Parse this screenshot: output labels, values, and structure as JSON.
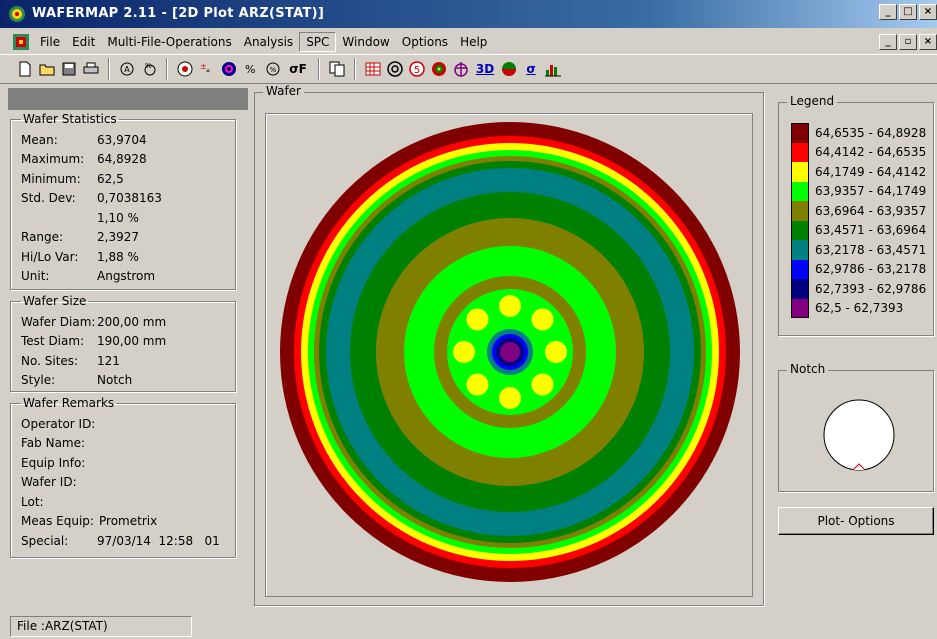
{
  "window": {
    "title": "WAFERMAP 2.11 - [2D Plot  ARZ(STAT)]",
    "controls": [
      "_",
      "□",
      "×"
    ],
    "mdi_controls": [
      "_",
      "▫",
      "×"
    ]
  },
  "menu": [
    "File",
    "Edit",
    "Multi-File-Operations",
    "Analysis",
    "SPC",
    "Window",
    "Options",
    "Help"
  ],
  "toolbar": {
    "sigma_f": "σF",
    "three_d": "3D",
    "sigma": "σ"
  },
  "stats": {
    "title": "Wafer Statistics",
    "rows": [
      {
        "k": "Mean:",
        "v": "63,9704"
      },
      {
        "k": "Maximum:",
        "v": "64,8928"
      },
      {
        "k": "Minimum:",
        "v": "62,5"
      },
      {
        "k": "Std. Dev:",
        "v": "0,7038163"
      },
      {
        "k": "",
        "v": "1,10 %"
      },
      {
        "k": "Range:",
        "v": "2,3927"
      },
      {
        "k": "Hi/Lo Var:",
        "v": "1,88 %"
      },
      {
        "k": "Unit:",
        "v": "Angstrom"
      }
    ]
  },
  "size": {
    "title": "Wafer Size",
    "rows": [
      {
        "k": "Wafer Diam:",
        "v": "200,00 mm"
      },
      {
        "k": "Test Diam:",
        "v": "190,00 mm"
      },
      {
        "k": "No. Sites:",
        "v": "121"
      },
      {
        "k": "Style:",
        "v": "Notch"
      }
    ]
  },
  "remarks": {
    "title": "Wafer Remarks",
    "rows": [
      {
        "k": "Operator ID:",
        "v": ""
      },
      {
        "k": "Fab Name:",
        "v": ""
      },
      {
        "k": "Equip Info:",
        "v": ""
      },
      {
        "k": "Wafer ID:",
        "v": ""
      },
      {
        "k": "Lot:",
        "v": ""
      },
      {
        "k": "Meas Equip:",
        "v": "Prometrix"
      },
      {
        "k": "Special:",
        "v": "97/03/14  12:58   01"
      }
    ]
  },
  "wafer_panel": {
    "label": "Wafer"
  },
  "legend": {
    "title": "Legend",
    "items": [
      {
        "label": "64,6535 - 64,8928",
        "color": "#800000"
      },
      {
        "label": "64,4142 - 64,6535",
        "color": "#ff0000"
      },
      {
        "label": "64,1749 - 64,4142",
        "color": "#ffff00"
      },
      {
        "label": "63,9357 - 64,1749",
        "color": "#00ff00"
      },
      {
        "label": "63,6964 - 63,9357",
        "color": "#808000"
      },
      {
        "label": "63,4571 - 63,6964",
        "color": "#008000"
      },
      {
        "label": "63,2178 - 63,4571",
        "color": "#008080"
      },
      {
        "label": "62,9786 - 63,2178",
        "color": "#0000ff"
      },
      {
        "label": "62,7393 - 62,9786",
        "color": "#000080"
      },
      {
        "label": "62,5 - 62,7393",
        "color": "#800080"
      }
    ]
  },
  "notch": {
    "label": "Notch"
  },
  "buttons": {
    "plot_options": "Plot- Options"
  },
  "status": {
    "text": "File :ARZ(STAT)"
  }
}
